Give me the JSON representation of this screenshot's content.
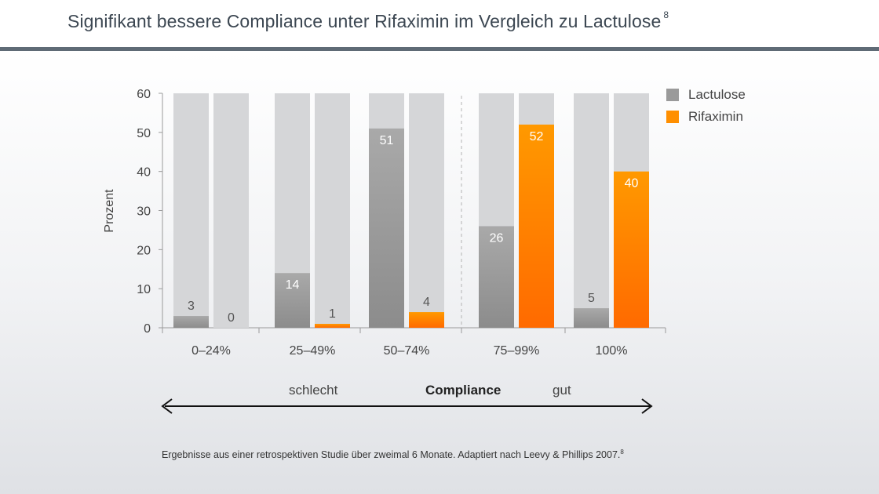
{
  "title": "Signifikant bessere Compliance unter Rifaximin im Vergleich zu Lactulose",
  "title_ref": "8",
  "colors": {
    "lactulose": "#9a9a9a",
    "rifaximin": "#ff8f00",
    "background_bar": "#d5d6d8",
    "accent_rule": "#5f6b76"
  },
  "chart_data": {
    "type": "bar",
    "ylabel": "Prozent",
    "ylim": [
      0,
      60
    ],
    "yticks": [
      0,
      10,
      20,
      30,
      40,
      50,
      60
    ],
    "categories": [
      "0–24%",
      "25–49%",
      "50–74%",
      "75–99%",
      "100%"
    ],
    "series": [
      {
        "name": "Lactulose",
        "values": [
          3,
          14,
          51,
          26,
          5
        ]
      },
      {
        "name": "Rifaximin",
        "values": [
          0,
          1,
          4,
          52,
          40
        ]
      }
    ],
    "legend_position": "top-right",
    "grid": false
  },
  "compliance_scale": {
    "left_label": "schlecht",
    "center_label": "Compliance",
    "right_label": "gut"
  },
  "footnote": "Ergebnisse aus einer retrospektiven Studie über zweimal 6 Monate. Adaptiert nach Leevy & Phillips 2007.",
  "footnote_ref": "8"
}
